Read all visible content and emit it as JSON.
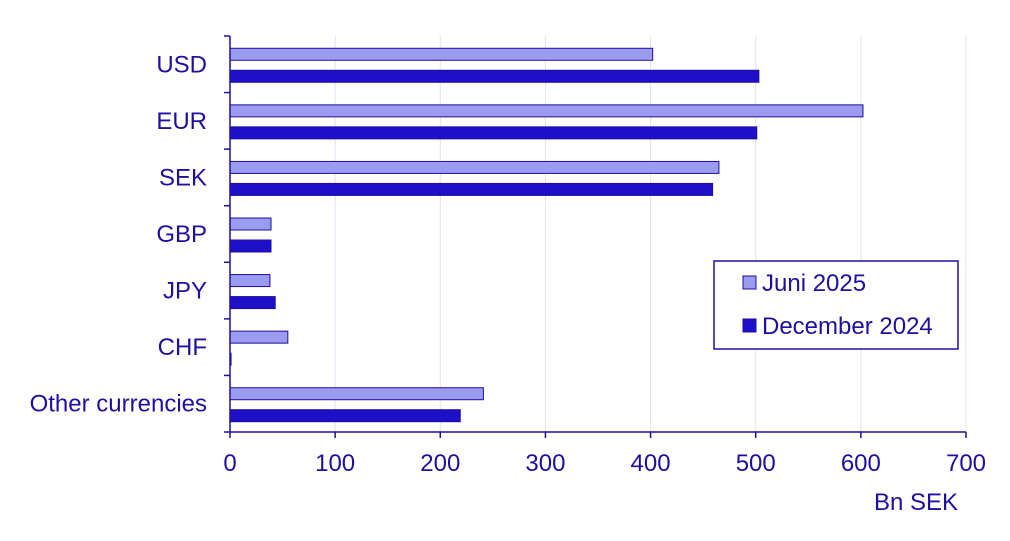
{
  "chart_data": {
    "type": "bar",
    "orientation": "horizontal",
    "categories": [
      "USD",
      "EUR",
      "SEK",
      "GBP",
      "JPY",
      "CHF",
      "Other currencies"
    ],
    "series": [
      {
        "name": "Juni 2025",
        "values": [
          402,
          602,
          465,
          39,
          38,
          55,
          241
        ],
        "color": "#9b9bf0"
      },
      {
        "name": "December 2024",
        "values": [
          503,
          501,
          459,
          39,
          43,
          1,
          219
        ],
        "color": "#1e0fc8"
      }
    ],
    "xlabel": "Bn SEK",
    "xlim": [
      0,
      700
    ],
    "xticks": [
      0,
      100,
      200,
      300,
      400,
      500,
      600,
      700
    ],
    "grid": "vertical",
    "legend_position": "right",
    "colors": {
      "text": "#1e0fa0",
      "axis": "#1e0fa0",
      "grid": "#e2e2f0",
      "bar_stroke": "#1e0fa0"
    }
  }
}
